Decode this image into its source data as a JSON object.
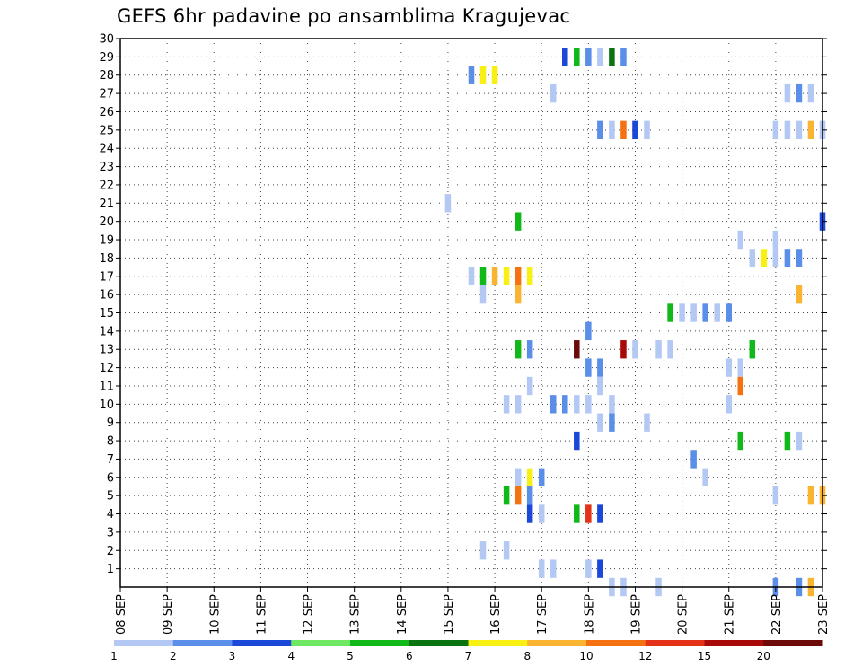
{
  "chart_data": {
    "type": "heatmap",
    "title": "GEFS 6hr padavine po ansamblima Kragujevac",
    "x_tick_labels": [
      "08 SEP",
      "09 SEP",
      "10 SEP",
      "11 SEP",
      "12 SEP",
      "13 SEP",
      "14 SEP",
      "15 SEP",
      "16 SEP",
      "17 SEP",
      "18 SEP",
      "19 SEP",
      "20 SEP",
      "21 SEP",
      "22 SEP",
      "23 SEP"
    ],
    "x_step_hours": 6,
    "x_range_steps": [
      0,
      60
    ],
    "y_tick_labels": [
      "1",
      "2",
      "3",
      "4",
      "5",
      "6",
      "7",
      "8",
      "9",
      "10",
      "11",
      "12",
      "13",
      "14",
      "15",
      "16",
      "17",
      "18",
      "19",
      "20",
      "21",
      "22",
      "23",
      "24",
      "25",
      "26",
      "27",
      "28",
      "29",
      "30"
    ],
    "ylim": [
      0,
      30
    ],
    "grid": true,
    "legend_placement": "bottom",
    "color_scale": {
      "labels": [
        "1",
        "2",
        "3",
        "4",
        "5",
        "6",
        "7",
        "8",
        "10",
        "12",
        "15",
        "20"
      ],
      "thresholds": [
        1,
        2,
        3,
        4,
        5,
        6,
        7,
        8,
        10,
        12,
        15,
        20
      ],
      "colors": [
        "#b4c8f4",
        "#5a8ee8",
        "#1c48d8",
        "#6ee862",
        "#10b81a",
        "#0a7410",
        "#f8f012",
        "#fab432",
        "#f47212",
        "#e43218",
        "#a80a0a",
        "#6c0a0a"
      ]
    },
    "cells": [
      [
        38,
        29,
        3
      ],
      [
        39,
        29,
        5
      ],
      [
        40,
        29,
        2
      ],
      [
        41,
        29,
        1
      ],
      [
        42,
        29,
        6
      ],
      [
        43,
        29,
        2
      ],
      [
        30,
        28,
        2
      ],
      [
        31,
        28,
        7
      ],
      [
        32,
        28,
        7
      ],
      [
        37,
        27,
        1
      ],
      [
        57,
        27,
        1
      ],
      [
        58,
        27,
        2
      ],
      [
        59,
        27,
        1
      ],
      [
        41,
        25,
        2
      ],
      [
        42,
        25,
        1
      ],
      [
        43,
        25,
        10
      ],
      [
        44,
        25,
        3
      ],
      [
        45,
        25,
        1
      ],
      [
        56,
        25,
        1
      ],
      [
        57,
        25,
        1
      ],
      [
        58,
        25,
        1
      ],
      [
        59,
        25,
        8
      ],
      [
        60,
        25,
        1
      ],
      [
        28,
        21,
        1
      ],
      [
        34,
        20,
        5
      ],
      [
        60,
        20,
        3
      ],
      [
        53,
        19,
        1
      ],
      [
        56,
        19,
        1
      ],
      [
        54,
        18,
        1
      ],
      [
        55,
        18,
        7
      ],
      [
        56,
        18,
        1
      ],
      [
        57,
        18,
        2
      ],
      [
        58,
        18,
        2
      ],
      [
        30,
        17,
        1
      ],
      [
        31,
        17,
        5
      ],
      [
        32,
        17,
        8
      ],
      [
        33,
        17,
        7
      ],
      [
        34,
        17,
        10
      ],
      [
        35,
        17,
        7
      ],
      [
        58,
        16,
        8
      ],
      [
        31,
        16,
        1
      ],
      [
        34,
        16,
        8
      ],
      [
        47,
        15,
        5
      ],
      [
        48,
        15,
        1
      ],
      [
        49,
        15,
        1
      ],
      [
        50,
        15,
        2
      ],
      [
        51,
        15,
        1
      ],
      [
        52,
        15,
        2
      ],
      [
        40,
        14,
        2
      ],
      [
        34,
        13,
        5
      ],
      [
        35,
        13,
        2
      ],
      [
        39,
        13,
        20
      ],
      [
        43,
        13,
        15
      ],
      [
        44,
        13,
        1
      ],
      [
        46,
        13,
        1
      ],
      [
        47,
        13,
        1
      ],
      [
        54,
        13,
        5
      ],
      [
        40,
        12,
        2
      ],
      [
        41,
        12,
        2
      ],
      [
        52,
        12,
        1
      ],
      [
        53,
        12,
        1
      ],
      [
        35,
        11,
        1
      ],
      [
        41,
        11,
        1
      ],
      [
        53,
        11,
        10
      ],
      [
        33,
        10,
        1
      ],
      [
        34,
        10,
        1
      ],
      [
        37,
        10,
        2
      ],
      [
        38,
        10,
        2
      ],
      [
        39,
        10,
        1
      ],
      [
        40,
        10,
        1
      ],
      [
        42,
        10,
        1
      ],
      [
        52,
        10,
        1
      ],
      [
        41,
        9,
        1
      ],
      [
        42,
        9,
        2
      ],
      [
        45,
        9,
        1
      ],
      [
        39,
        8,
        3
      ],
      [
        53,
        8,
        5
      ],
      [
        57,
        8,
        5
      ],
      [
        58,
        8,
        1
      ],
      [
        49,
        7,
        2
      ],
      [
        34,
        6,
        1
      ],
      [
        35,
        6,
        7
      ],
      [
        36,
        6,
        2
      ],
      [
        50,
        6,
        1
      ],
      [
        33,
        5,
        5
      ],
      [
        34,
        5,
        10
      ],
      [
        35,
        5,
        2
      ],
      [
        56,
        5,
        1
      ],
      [
        59,
        5,
        8
      ],
      [
        60,
        5,
        8
      ],
      [
        35,
        4,
        3
      ],
      [
        36,
        4,
        1
      ],
      [
        39,
        4,
        5
      ],
      [
        40,
        4,
        12
      ],
      [
        41,
        4,
        3
      ],
      [
        31,
        2,
        1
      ],
      [
        33,
        2,
        1
      ],
      [
        36,
        1,
        1
      ],
      [
        37,
        1,
        1
      ],
      [
        40,
        1,
        1
      ],
      [
        41,
        1,
        3
      ],
      [
        42,
        0,
        1
      ],
      [
        43,
        0,
        1
      ],
      [
        46,
        0,
        1
      ],
      [
        56,
        0,
        2
      ],
      [
        58,
        0,
        2
      ],
      [
        59,
        0,
        8
      ]
    ]
  }
}
